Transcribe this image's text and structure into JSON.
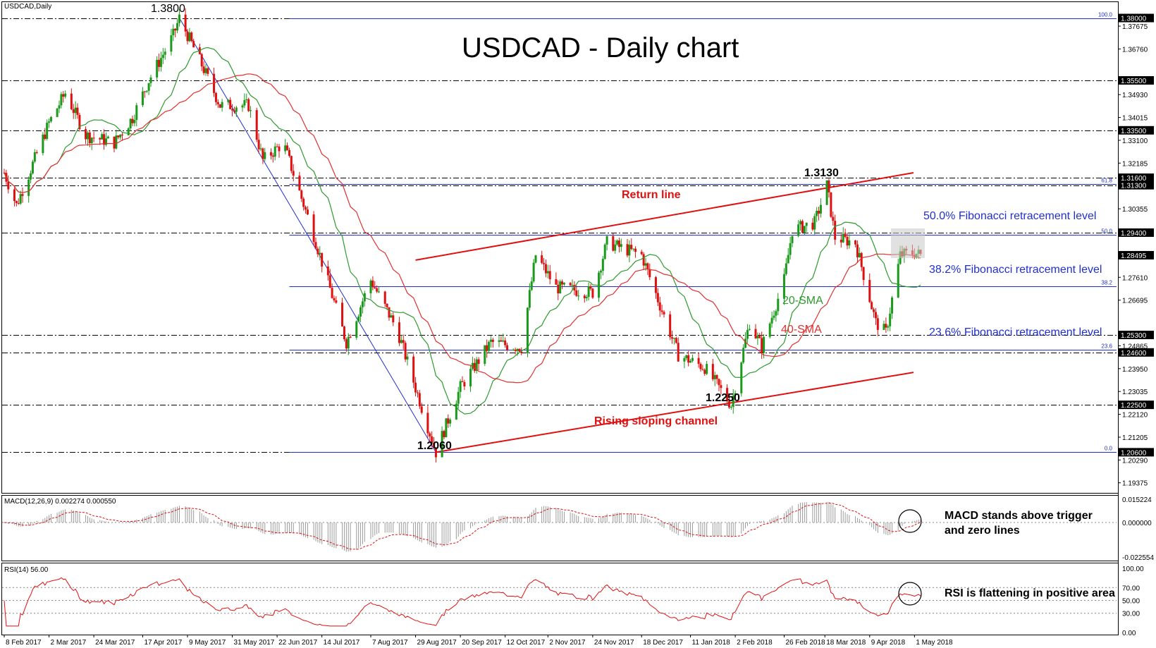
{
  "window": {
    "symbol_label": "USDCAD,Daily"
  },
  "title": "USDCAD - Daily chart",
  "colors": {
    "bull": "#1a9a1a",
    "bear": "#e01010",
    "sma20": "#2e9a2e",
    "sma40": "#e03030",
    "fib": "#2030d0",
    "channel": "#e01010",
    "level": "#000000",
    "rsi": "#e01010",
    "macd_signal": "#e01010"
  },
  "price_axis": {
    "ticks": [
      "1.37675",
      "1.36760",
      "1.34930",
      "1.34015",
      "1.33100",
      "1.32185",
      "1.30355",
      "1.27610",
      "1.26695",
      "1.24865",
      "1.23950",
      "1.23035",
      "1.22120",
      "1.21205",
      "1.20290",
      "1.19375"
    ],
    "highlight_labels": [
      "1.38000",
      "1.35500",
      "1.33500",
      "1.31600",
      "1.31300",
      "1.29400",
      "1.28495",
      "1.25300",
      "1.24600",
      "1.22500",
      "1.20600"
    ]
  },
  "fib_axis_labels": [
    "100.0",
    "61.8",
    "50.0",
    "38.2",
    "23.6",
    "0.0"
  ],
  "horizontal_levels": [
    1.38,
    1.355,
    1.335,
    1.316,
    1.313,
    1.294,
    1.253,
    1.246,
    1.225,
    1.206
  ],
  "fib_levels": [
    {
      "label": "100.0",
      "price": 1.38
    },
    {
      "label": "61.8",
      "price": 1.3136
    },
    {
      "label": "50.0",
      "price": 1.293
    },
    {
      "label": "38.2",
      "price": 1.2725
    },
    {
      "label": "23.6",
      "price": 1.2471
    },
    {
      "label": "0.0",
      "price": 1.206
    }
  ],
  "annotations": {
    "high": "1.3800",
    "peak": "1.3130",
    "low1": "1.2060",
    "low2": "1.2250",
    "return_line": "Return line",
    "channel": "Rising sloping channel",
    "fib50": "50.0% Fibonacci retracement level",
    "fib382": "38.2% Fibonacci retracement level",
    "fib236": "23.6% Fibonacci retracement level",
    "sma20": "20-SMA",
    "sma40": "40-SMA",
    "macd_note_1": "MACD stands above trigger",
    "macd_note_2": "and zero lines",
    "rsi_note": "RSI is flattening in positive area"
  },
  "macd": {
    "label": "MACD(12,26,9) 0.002274 0.000550",
    "ticks": [
      "0.015224",
      "0.000000",
      "-0.022554"
    ]
  },
  "rsi": {
    "label": "RSI(14) 56.00",
    "ticks": [
      "100.00",
      "70.00",
      "50.00",
      "30.00",
      "0.00"
    ]
  },
  "date_axis": [
    "8 Feb 2017",
    "2 Mar 2017",
    "24 Mar 2017",
    "17 Apr 2017",
    "9 May 2017",
    "31 May 2017",
    "22 Jun 2017",
    "14 Jul 2017",
    "7 Aug 2017",
    "29 Aug 2017",
    "20 Sep 2017",
    "12 Oct 2017",
    "2 Nov 2017",
    "24 Nov 2017",
    "18 Dec 2017",
    "11 Jan 2018",
    "2 Feb 2018",
    "26 Feb 2018",
    "18 Mar 2018",
    "9 Apr 2018",
    "1 May 2018"
  ],
  "chart_data": {
    "type": "candlestick",
    "title": "USDCAD - Daily chart",
    "symbol": "USDCAD",
    "timeframe": "Daily",
    "ylim": [
      1.19,
      1.381
    ],
    "x_range": [
      "8 Feb 2017",
      "4 May 2018"
    ],
    "last_price": 1.28495,
    "close_anchors": [
      {
        "date": "8 Feb 2017",
        "close": 1.318
      },
      {
        "date": "14 Feb 2017",
        "close": 1.305
      },
      {
        "date": "2 Mar 2017",
        "close": 1.338
      },
      {
        "date": "10 Mar 2017",
        "close": 1.35
      },
      {
        "date": "20 Mar 2017",
        "close": 1.333
      },
      {
        "date": "3 Apr 2017",
        "close": 1.33
      },
      {
        "date": "12 Apr 2017",
        "close": 1.34
      },
      {
        "date": "20 Apr 2017",
        "close": 1.355
      },
      {
        "date": "2 May 2017",
        "close": 1.373
      },
      {
        "date": "5 May 2017",
        "close": 1.38
      },
      {
        "date": "15 May 2017",
        "close": 1.363
      },
      {
        "date": "25 May 2017",
        "close": 1.345
      },
      {
        "date": "8 Jun 2017",
        "close": 1.345
      },
      {
        "date": "15 Jun 2017",
        "close": 1.323
      },
      {
        "date": "25 Jun 2017",
        "close": 1.33
      },
      {
        "date": "10 Jul 2017",
        "close": 1.293
      },
      {
        "date": "26 Jul 2017",
        "close": 1.25
      },
      {
        "date": "7 Aug 2017",
        "close": 1.275
      },
      {
        "date": "20 Aug 2017",
        "close": 1.255
      },
      {
        "date": "8 Sep 2017",
        "close": 1.206
      },
      {
        "date": "20 Sep 2017",
        "close": 1.232
      },
      {
        "date": "5 Oct 2017",
        "close": 1.25
      },
      {
        "date": "20 Oct 2017",
        "close": 1.248
      },
      {
        "date": "27 Oct 2017",
        "close": 1.285
      },
      {
        "date": "6 Nov 2017",
        "close": 1.272
      },
      {
        "date": "24 Nov 2017",
        "close": 1.27
      },
      {
        "date": "1 Dec 2017",
        "close": 1.29
      },
      {
        "date": "18 Dec 2017",
        "close": 1.285
      },
      {
        "date": "5 Jan 2018",
        "close": 1.245
      },
      {
        "date": "18 Jan 2018",
        "close": 1.24
      },
      {
        "date": "31 Jan 2018",
        "close": 1.225
      },
      {
        "date": "9 Feb 2018",
        "close": 1.258
      },
      {
        "date": "15 Feb 2018",
        "close": 1.248
      },
      {
        "date": "26 Feb 2018",
        "close": 1.275
      },
      {
        "date": "2 Mar 2018",
        "close": 1.295
      },
      {
        "date": "13 Mar 2018",
        "close": 1.298
      },
      {
        "date": "19 Mar 2018",
        "close": 1.313
      },
      {
        "date": "23 Mar 2018",
        "close": 1.292
      },
      {
        "date": "2 Apr 2018",
        "close": 1.29
      },
      {
        "date": "12 Apr 2018",
        "close": 1.258
      },
      {
        "date": "17 Apr 2018",
        "close": 1.254
      },
      {
        "date": "24 Apr 2018",
        "close": 1.285
      },
      {
        "date": "1 May 2018",
        "close": 1.286
      },
      {
        "date": "4 May 2018",
        "close": 1.28495
      }
    ],
    "trend_lines": [
      {
        "name": "Return line",
        "from": {
          "date": "29 Aug 2017",
          "price": 1.283
        },
        "to": {
          "date": "4 May 2018",
          "price": 1.318
        }
      },
      {
        "name": "Rising sloping channel",
        "from": {
          "date": "8 Sep 2017",
          "price": 1.206
        },
        "to": {
          "date": "4 May 2018",
          "price": 1.238
        }
      }
    ],
    "moving_averages": [
      "20-SMA",
      "40-SMA"
    ],
    "indicators": {
      "macd": [
        0.002274,
        0.00055
      ],
      "rsi": 56.0
    }
  }
}
